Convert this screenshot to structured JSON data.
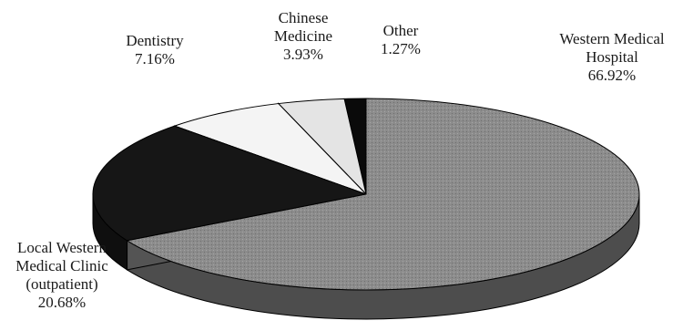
{
  "chart_data": {
    "type": "pie",
    "style": "3d-exploded",
    "title": "",
    "series": [
      {
        "values": [
          66.92,
          20.68,
          7.16,
          3.93,
          1.27
        ],
        "categories": [
          "Western Medical Hospital",
          "Local Western Medical Clinic (outpatient)",
          "Dentistry",
          "Chinese Medicine",
          "Other"
        ]
      }
    ],
    "slices": [
      {
        "label_lines": [
          "Western Medical",
          "Hospital"
        ],
        "value_text": "66.92%",
        "value": 66.92,
        "color": "#8c8c8c"
      },
      {
        "label_lines": [
          "Local Western",
          "Medical Clinic",
          "(outpatient)"
        ],
        "value_text": "20.68%",
        "value": 20.68,
        "color": "#161616"
      },
      {
        "label_lines": [
          "Dentistry"
        ],
        "value_text": "7.16%",
        "value": 7.16,
        "color": "#f4f4f4"
      },
      {
        "label_lines": [
          "Chinese",
          "Medicine"
        ],
        "value_text": "3.93%",
        "value": 3.93,
        "color": "#e4e4e4"
      },
      {
        "label_lines": [
          "Other"
        ],
        "value_text": "1.27%",
        "value": 1.27,
        "color": "#0a0a0a"
      }
    ]
  }
}
